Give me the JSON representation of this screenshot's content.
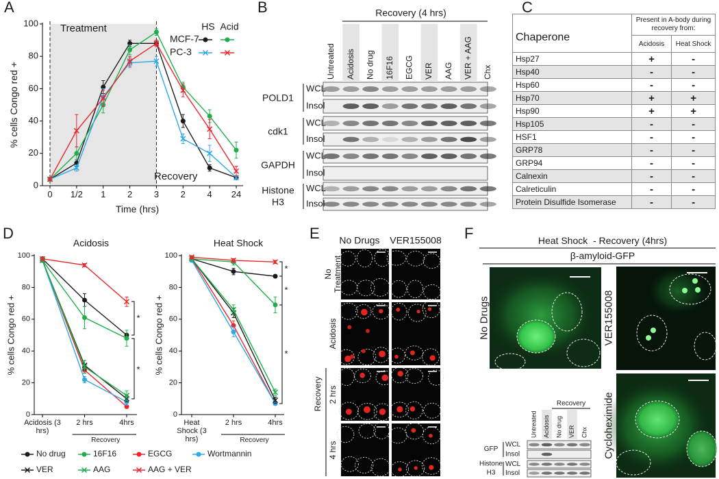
{
  "panel_labels": [
    "A",
    "B",
    "C",
    "D",
    "E",
    "F"
  ],
  "chart_data": [
    {
      "type": "line",
      "x_label": "Time (hrs)",
      "y_label": "% cells Congo red +",
      "categories": [
        "0",
        "1/2",
        "1",
        "2",
        "3",
        "2",
        "4",
        "24"
      ],
      "annotations": [
        "Treatment",
        "Recovery"
      ],
      "legend_columns": [
        "HS",
        "Acid"
      ],
      "legend_rows": [
        "MCF-7",
        "PC-3"
      ],
      "ylim": [
        0,
        100
      ],
      "yticks": [
        0,
        20,
        40,
        60,
        80,
        100
      ],
      "series": [
        {
          "color": "#1a1a1a",
          "marker": "circle",
          "values": [
            4,
            14,
            61,
            88,
            88,
            40,
            11,
            5
          ],
          "errors": [
            1,
            2,
            4,
            2,
            2,
            4,
            2,
            1
          ]
        },
        {
          "color": "#1fae4b",
          "marker": "circle",
          "values": [
            4,
            20,
            50,
            84,
            95,
            61,
            43,
            22
          ],
          "errors": [
            1,
            4,
            5,
            3,
            2,
            3,
            4,
            5
          ]
        },
        {
          "color": "#2ea7e8",
          "marker": "x",
          "values": [
            4,
            11,
            55,
            76,
            77,
            29,
            20,
            5
          ],
          "errors": [
            1,
            2,
            5,
            3,
            3,
            3,
            5,
            1
          ]
        },
        {
          "color": "#e8262b",
          "marker": "x",
          "values": [
            4,
            34,
            54,
            77,
            88,
            59,
            35,
            9
          ],
          "errors": [
            1,
            10,
            5,
            3,
            2,
            4,
            6,
            3
          ]
        }
      ]
    },
    {
      "type": "line",
      "title": "Acidosis",
      "y_label": "% cells Congo red +",
      "categories": [
        "Acidosis (3 hrs)",
        "2 hrs",
        "4hrs"
      ],
      "x_group_label": "Recovery",
      "annotations": [
        "*",
        "*"
      ],
      "ylim": [
        0,
        100
      ],
      "yticks": [
        0,
        20,
        40,
        60,
        80,
        100
      ],
      "series": [
        {
          "name": "No drug",
          "color": "#1a1a1a",
          "marker": "circle",
          "values": [
            98,
            72,
            50
          ],
          "errors": [
            1,
            4,
            3
          ]
        },
        {
          "name": "16F16",
          "color": "#1fae4b",
          "marker": "circle",
          "values": [
            97,
            61,
            48
          ],
          "errors": [
            1,
            7,
            5
          ]
        },
        {
          "name": "EGCG",
          "color": "#e8262b",
          "marker": "circle",
          "values": [
            97,
            28,
            5
          ],
          "errors": [
            1,
            2,
            1
          ]
        },
        {
          "name": "Wortmannin",
          "color": "#2ea7e8",
          "marker": "circle",
          "values": [
            97,
            22,
            8
          ],
          "errors": [
            1,
            2,
            2
          ]
        },
        {
          "name": "VER",
          "color": "#1a1a1a",
          "marker": "x",
          "values": [
            97,
            31,
            10
          ],
          "errors": [
            1,
            3,
            2
          ]
        },
        {
          "name": "AAG",
          "color": "#1fae4b",
          "marker": "x",
          "values": [
            97,
            30,
            12
          ],
          "errors": [
            1,
            4,
            3
          ]
        },
        {
          "name": "AAG + VER",
          "color": "#e8262b",
          "marker": "x",
          "values": [
            98,
            94,
            71
          ],
          "errors": [
            1,
            1,
            3
          ]
        }
      ]
    },
    {
      "type": "line",
      "title": "Heat Shock",
      "y_label": "% cells Congo red +",
      "categories": [
        "Heat Shock (3 hrs)",
        "2 hrs",
        "4hrs"
      ],
      "x_group_label": "Recovery",
      "annotations": [
        "*",
        "*",
        "*"
      ],
      "ylim": [
        0,
        100
      ],
      "yticks": [
        0,
        20,
        40,
        60,
        80,
        100
      ],
      "series": [
        {
          "color": "#1a1a1a",
          "marker": "circle",
          "values": [
            98,
            90,
            87
          ],
          "errors": [
            1,
            2,
            1
          ]
        },
        {
          "color": "#1fae4b",
          "marker": "circle",
          "values": [
            98,
            96,
            69
          ],
          "errors": [
            1,
            2,
            5
          ]
        },
        {
          "color": "#e8262b",
          "marker": "circle",
          "values": [
            98,
            56,
            7
          ],
          "errors": [
            1,
            3,
            1
          ]
        },
        {
          "color": "#2ea7e8",
          "marker": "circle",
          "values": [
            97,
            52,
            7
          ],
          "errors": [
            1,
            3,
            1
          ]
        },
        {
          "color": "#1a1a1a",
          "marker": "x",
          "values": [
            98,
            64,
            9
          ],
          "errors": [
            1,
            3,
            2
          ]
        },
        {
          "color": "#1fae4b",
          "marker": "x",
          "values": [
            98,
            66,
            14
          ],
          "errors": [
            1,
            3,
            2
          ]
        },
        {
          "color": "#e8262b",
          "marker": "x",
          "values": [
            99,
            97,
            96
          ],
          "errors": [
            1,
            1,
            1
          ]
        }
      ]
    }
  ],
  "blot_b": {
    "header": "Recovery (4 hrs)",
    "lanes": [
      "Untreated",
      "Acidosis",
      "No drug",
      "16F16",
      "EGCG",
      "VER",
      "AAG",
      "VER + AAG",
      "Chx"
    ],
    "rows": [
      {
        "protein": "POLD1",
        "fractions": [
          "WCL",
          "Insol"
        ]
      },
      {
        "protein": "cdk1",
        "fractions": [
          "WCL",
          "Insol"
        ]
      },
      {
        "protein": "GAPDH",
        "fractions": [
          "WCL",
          "Insol"
        ]
      },
      {
        "protein": "Histone H3",
        "fractions": [
          "WCL",
          "Insol"
        ]
      }
    ]
  },
  "table_c": {
    "title": "Chaperone",
    "group_header": "Present in A-body during recovery from:",
    "columns": [
      "Acidosis",
      "Heat Shock"
    ],
    "rows": [
      [
        "Hsp27",
        "+",
        "-"
      ],
      [
        "Hsp40",
        "-",
        "-"
      ],
      [
        "Hsp60",
        "-",
        "-"
      ],
      [
        "Hsp70",
        "+",
        "+"
      ],
      [
        "Hsp90",
        "+",
        "+"
      ],
      [
        "Hsp105",
        "-",
        "-"
      ],
      [
        "HSF1",
        "-",
        "-"
      ],
      [
        "GRP78",
        "-",
        "-"
      ],
      [
        "GRP94",
        "-",
        "-"
      ],
      [
        "Calnexin",
        "-",
        "-"
      ],
      [
        "Calreticulin",
        "-",
        "-"
      ],
      [
        "Protein Disulfide Isomerase",
        "-",
        "-"
      ]
    ]
  },
  "micrographs_e": {
    "columns": [
      "No Drugs",
      "VER155008"
    ],
    "rows": [
      "No Treatment",
      "Acidosis",
      "2 hrs",
      "4 hrs"
    ],
    "group_label": "Recovery"
  },
  "panel_f": {
    "title": "Heat Shock  - Recovery (4hrs)",
    "subtitle": "β-amyloid-GFP",
    "images": [
      "No Drugs",
      "VER155008",
      "Cycloheximide"
    ],
    "blot": {
      "header": "Recovery",
      "lanes": [
        "Untreated",
        "Acidosis",
        "No drug",
        "VER",
        "Chx"
      ],
      "rows": [
        {
          "protein": "GFP",
          "fractions": [
            "WCL",
            "Insol"
          ]
        },
        {
          "protein": "Histone H3",
          "fractions": [
            "WCL",
            "Insol"
          ]
        }
      ]
    }
  }
}
